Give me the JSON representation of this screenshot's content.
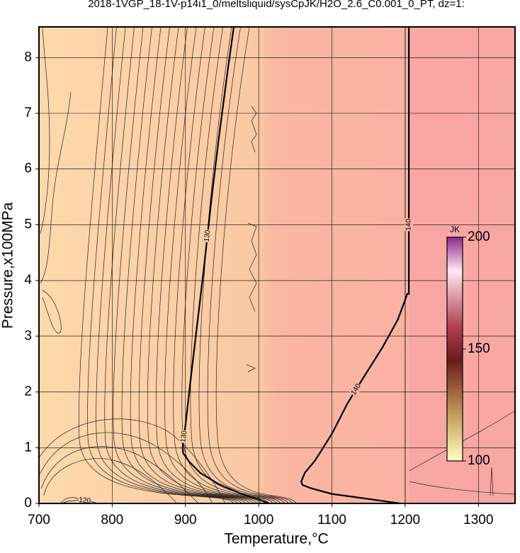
{
  "chart_data": {
    "type": "contour",
    "title": "2018-1VGP_18-1V-p14i1_0/meltsliquid/sysCpJK/H2O_2.6_C0.001_0_PT, dz=1:",
    "x_label": "Temperature,°C",
    "y_label": "Pressure,x100MPa",
    "xlim": [
      700,
      1350
    ],
    "ylim": [
      0,
      8.55
    ],
    "xticks": [
      700,
      800,
      900,
      1000,
      1100,
      1200,
      1300
    ],
    "yticks": [
      0,
      1,
      2,
      3,
      4,
      5,
      6,
      7,
      8
    ],
    "grid": true,
    "contours": [
      {
        "level": 130,
        "x": [
          966,
          958,
          950,
          945,
          935,
          925,
          915,
          906,
          900,
          896,
          897,
          905,
          920,
          945,
          975,
          1000,
          1014
        ],
        "y": [
          8.55,
          7.8,
          7.0,
          6.5,
          5.4,
          4.2,
          3.1,
          2.1,
          1.4,
          1.0,
          0.9,
          0.75,
          0.55,
          0.35,
          0.18,
          0.07,
          0
        ]
      },
      {
        "level": 140,
        "x": [
          1193,
          1150,
          1100,
          1072,
          1060,
          1058,
          1063,
          1077,
          1100,
          1121,
          1145,
          1169,
          1190,
          1203,
          1205,
          1205
        ],
        "y": [
          0,
          0.08,
          0.17,
          0.27,
          0.33,
          0.39,
          0.55,
          0.77,
          1.25,
          1.79,
          2.3,
          2.8,
          3.3,
          3.76,
          3.76,
          8.55
        ]
      },
      {
        "level": 120,
        "x": [
          730,
          740,
          755,
          770,
          780
        ],
        "y": [
          0,
          0.04,
          0.06,
          0.04,
          0
        ]
      }
    ],
    "colorbar": {
      "label": "JK",
      "lim": [
        100,
        200
      ],
      "ticks": [
        100,
        150,
        200
      ]
    }
  }
}
